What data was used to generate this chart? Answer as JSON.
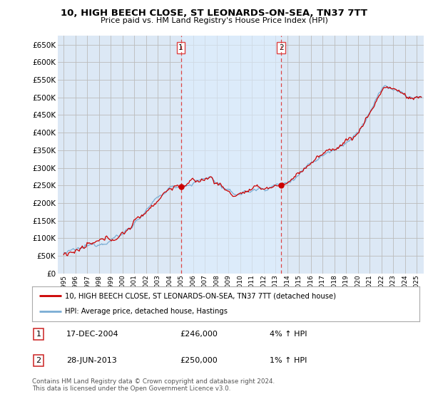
{
  "title": "10, HIGH BEECH CLOSE, ST LEONARDS-ON-SEA, TN37 7TT",
  "subtitle": "Price paid vs. HM Land Registry's House Price Index (HPI)",
  "ylabel_ticks": [
    0,
    50000,
    100000,
    150000,
    200000,
    250000,
    300000,
    350000,
    400000,
    450000,
    500000,
    550000,
    600000,
    650000
  ],
  "ylim": [
    0,
    675000
  ],
  "xlim_start": 1994.5,
  "xlim_end": 2025.6,
  "sale1_year": 2004.96,
  "sale1_price": 246000,
  "sale1_label": "1",
  "sale1_date": "17-DEC-2004",
  "sale1_hpi_pct": "4%",
  "sale2_year": 2013.5,
  "sale2_price": 250000,
  "sale2_label": "2",
  "sale2_date": "28-JUN-2013",
  "sale2_hpi_pct": "1%",
  "line1_label": "10, HIGH BEECH CLOSE, ST LEONARDS-ON-SEA, TN37 7TT (detached house)",
  "line1_color": "#cc0000",
  "line2_label": "HPI: Average price, detached house, Hastings",
  "line2_color": "#7aadd4",
  "background_color": "#ffffff",
  "plot_bg_color": "#dce8f5",
  "shade_color": "#ccdff0",
  "grid_color": "#bbbbbb",
  "vline_color": "#dd4444",
  "footnote": "Contains HM Land Registry data © Crown copyright and database right 2024.\nThis data is licensed under the Open Government Licence v3.0."
}
